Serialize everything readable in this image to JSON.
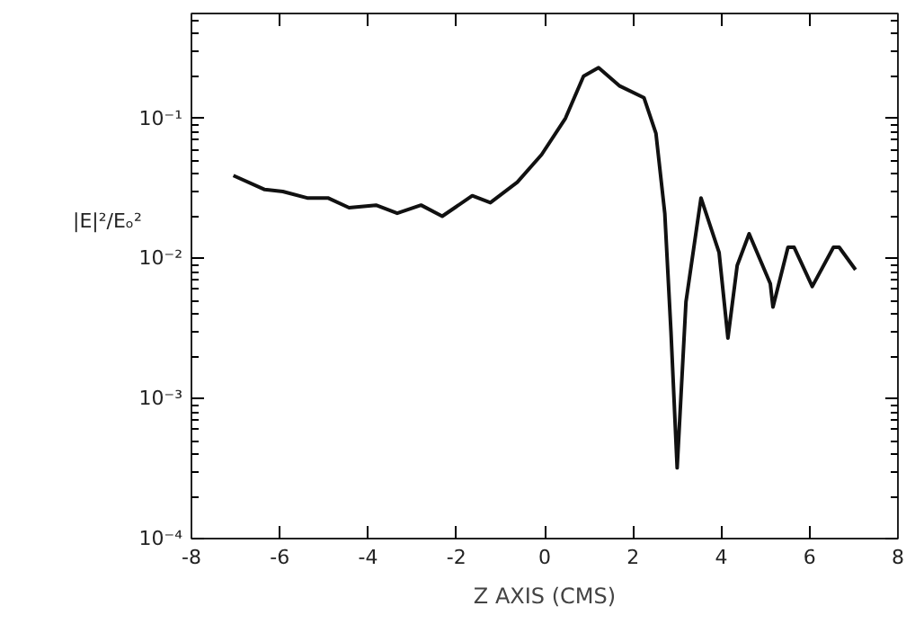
{
  "chart_data": {
    "type": "line",
    "xlabel": "Z AXIS (CMS)",
    "ylabel": "|E|²/Eₒ²",
    "log": "y",
    "grid": false,
    "marker": "none",
    "line_style": "solid",
    "xlim": [
      -8,
      8
    ],
    "xticks": [
      -8,
      -6,
      -4,
      -2,
      0,
      2,
      4,
      6,
      8
    ],
    "ylim": [
      0.0001,
      0.56
    ],
    "yticks": [
      {
        "value": 0.0001,
        "label": "10⁻⁴"
      },
      {
        "value": 0.001,
        "label": "10⁻³"
      },
      {
        "value": 0.01,
        "label": "10⁻²"
      },
      {
        "value": 0.1,
        "label": "10⁻¹"
      }
    ],
    "series": [
      {
        "color": "#111111",
        "x": [
          -7.05,
          -6.34,
          -5.93,
          -5.38,
          -4.91,
          -4.43,
          -3.82,
          -3.34,
          -2.8,
          -2.32,
          -1.64,
          -1.23,
          -0.62,
          -0.07,
          0.47,
          0.88,
          1.22,
          1.7,
          2.25,
          2.52,
          2.72,
          2.86,
          3.0,
          3.2,
          3.54,
          3.95,
          4.15,
          4.36,
          4.63,
          5.11,
          5.17,
          5.51,
          5.65,
          6.06,
          6.54,
          6.67,
          7.04
        ],
        "values": [
          0.039,
          0.031,
          0.03,
          0.027,
          0.027,
          0.023,
          0.024,
          0.021,
          0.024,
          0.02,
          0.028,
          0.025,
          0.035,
          0.055,
          0.1,
          0.2,
          0.23,
          0.17,
          0.14,
          0.078,
          0.021,
          0.003,
          0.00032,
          0.0049,
          0.027,
          0.011,
          0.0027,
          0.0089,
          0.015,
          0.0066,
          0.0045,
          0.012,
          0.012,
          0.0063,
          0.012,
          0.012,
          0.0083
        ]
      }
    ]
  }
}
